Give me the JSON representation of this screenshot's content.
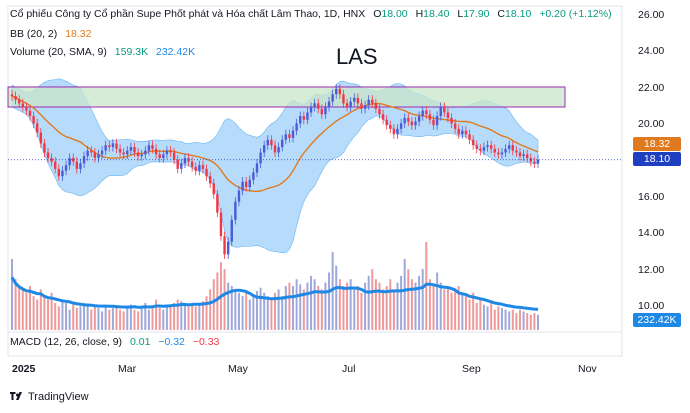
{
  "legend": {
    "symbol_line": "Cổ phiếu Công ty Cổ phần Supe Phốt phát và Hóa chất Lâm Thao, 1D, HNX",
    "o_label": "O",
    "o_value": "18.00",
    "h_label": "H",
    "h_value": "18.40",
    "l_label": "L",
    "l_value": "17.90",
    "c_label": "C",
    "c_value": "18.10",
    "change": "+0.20 (+1.12%)",
    "bb_label": "BB (20, 2)",
    "bb_value": "18.32",
    "vol_label": "Volume (20, SMA, 9)",
    "vol_value1": "159.3K",
    "vol_value2": "232.42K",
    "macd_label": "MACD (12, 26, close, 9)",
    "macd_v1": "0.01",
    "macd_v2": "−0.32",
    "macd_v3": "−0.33"
  },
  "watermark": "LAS",
  "footer_brand": "TradingView",
  "price_tags": {
    "bb_tag": "18.32",
    "last_tag": "18.10",
    "vol_tag": "232.42K"
  },
  "colors": {
    "up": "#089981",
    "down": "#f23645",
    "candle_up": "#4a5ad8",
    "candle_down": "#f23645",
    "bb_fill": "#90caf9",
    "bb_basis": "#e07a1f",
    "vol_sma": "#1e88e5",
    "zone_fill": "#c8e6c9",
    "zone_border": "#9c27b0"
  },
  "chart_data": {
    "type": "candlestick",
    "y_ticks": [
      "26.00",
      "24.00",
      "22.00",
      "20.00",
      "18.00",
      "16.00",
      "14.00",
      "12.00",
      "10.00"
    ],
    "ylim": [
      9.2,
      26.6
    ],
    "x_labels": [
      "2025",
      "Mar",
      "May",
      "Jul",
      "Sep",
      "Nov"
    ],
    "resistance_zone": [
      21.0,
      22.1
    ],
    "last_price": 18.1,
    "close": [
      21.6,
      21.4,
      21.2,
      21.0,
      20.8,
      20.5,
      20.1,
      19.6,
      19.0,
      18.5,
      18.2,
      18.0,
      17.6,
      17.2,
      17.5,
      17.8,
      18.2,
      18.0,
      17.6,
      17.9,
      18.3,
      18.6,
      18.5,
      18.2,
      18.4,
      18.6,
      18.9,
      18.8,
      19.0,
      18.7,
      18.5,
      18.4,
      18.6,
      18.8,
      18.5,
      18.3,
      18.4,
      18.6,
      18.9,
      18.7,
      18.4,
      18.2,
      18.4,
      18.6,
      18.5,
      18.1,
      17.6,
      17.9,
      18.2,
      18.0,
      17.7,
      17.5,
      17.8,
      17.6,
      17.2,
      16.8,
      16.2,
      15.2,
      13.9,
      12.9,
      13.6,
      14.8,
      15.8,
      16.4,
      16.9,
      16.6,
      17.0,
      17.4,
      17.9,
      18.5,
      18.9,
      19.2,
      18.9,
      18.5,
      18.8,
      19.2,
      19.5,
      19.3,
      19.7,
      20.1,
      20.5,
      20.3,
      20.7,
      21.0,
      21.2,
      20.9,
      20.6,
      21.0,
      21.3,
      21.7,
      22.0,
      21.7,
      21.2,
      21.0,
      21.3,
      21.5,
      21.2,
      20.9,
      21.1,
      21.4,
      21.2,
      20.9,
      20.6,
      20.3,
      20.0,
      19.8,
      19.5,
      19.8,
      20.1,
      20.4,
      20.2,
      20.0,
      20.2,
      20.5,
      20.8,
      20.6,
      20.3,
      20.0,
      20.5,
      21.0,
      20.7,
      20.4,
      20.1,
      19.8,
      19.5,
      19.7,
      19.5,
      19.2,
      18.9,
      18.7,
      18.6,
      18.8,
      18.9,
      18.7,
      18.5,
      18.4,
      18.5,
      18.7,
      18.9,
      18.6,
      18.5,
      18.3,
      18.4,
      18.2,
      18.0,
      17.9,
      18.1
    ],
    "volume": [
      4.2,
      3.0,
      2.6,
      2.4,
      2.2,
      2.6,
      2.0,
      1.8,
      2.4,
      2.0,
      1.8,
      2.2,
      1.6,
      1.4,
      1.8,
      1.6,
      1.2,
      1.5,
      1.3,
      1.4,
      1.6,
      1.5,
      1.2,
      1.4,
      1.3,
      1.1,
      1.5,
      1.2,
      1.3,
      1.4,
      1.2,
      1.1,
      1.3,
      1.5,
      1.2,
      1.1,
      1.3,
      1.6,
      1.2,
      1.4,
      1.8,
      1.3,
      1.2,
      1.5,
      1.4,
      1.6,
      1.8,
      1.7,
      1.5,
      1.4,
      1.6,
      1.4,
      1.5,
      1.7,
      2.0,
      2.4,
      3.0,
      3.4,
      4.0,
      3.6,
      2.8,
      2.6,
      2.4,
      2.2,
      2.0,
      2.2,
      1.8,
      2.0,
      2.3,
      2.5,
      2.2,
      2.0,
      1.8,
      2.2,
      2.4,
      2.0,
      2.6,
      2.8,
      2.6,
      3.0,
      2.7,
      2.4,
      2.8,
      3.2,
      3.0,
      2.6,
      2.4,
      2.8,
      3.4,
      4.6,
      3.8,
      3.0,
      2.6,
      2.8,
      3.0,
      2.4,
      2.6,
      2.2,
      2.8,
      3.2,
      3.6,
      3.0,
      2.8,
      2.4,
      2.6,
      3.0,
      2.4,
      2.8,
      3.2,
      4.2,
      3.6,
      3.0,
      2.8,
      3.2,
      3.6,
      5.2,
      3.0,
      2.6,
      3.4,
      2.8,
      2.4,
      2.6,
      2.2,
      2.4,
      2.6,
      2.2,
      2.0,
      1.8,
      2.2,
      1.6,
      1.8,
      1.5,
      1.4,
      1.6,
      1.2,
      1.4,
      1.3,
      1.2,
      1.1,
      1.2,
      1.0,
      1.2,
      1.1,
      1.0,
      0.9,
      1.0,
      0.9
    ],
    "volume_sma_label": "232.42K",
    "indicators": [
      "Bollinger Bands (20, 2)",
      "Volume (20, SMA, 9)",
      "MACD (12, 26, close, 9)"
    ]
  }
}
